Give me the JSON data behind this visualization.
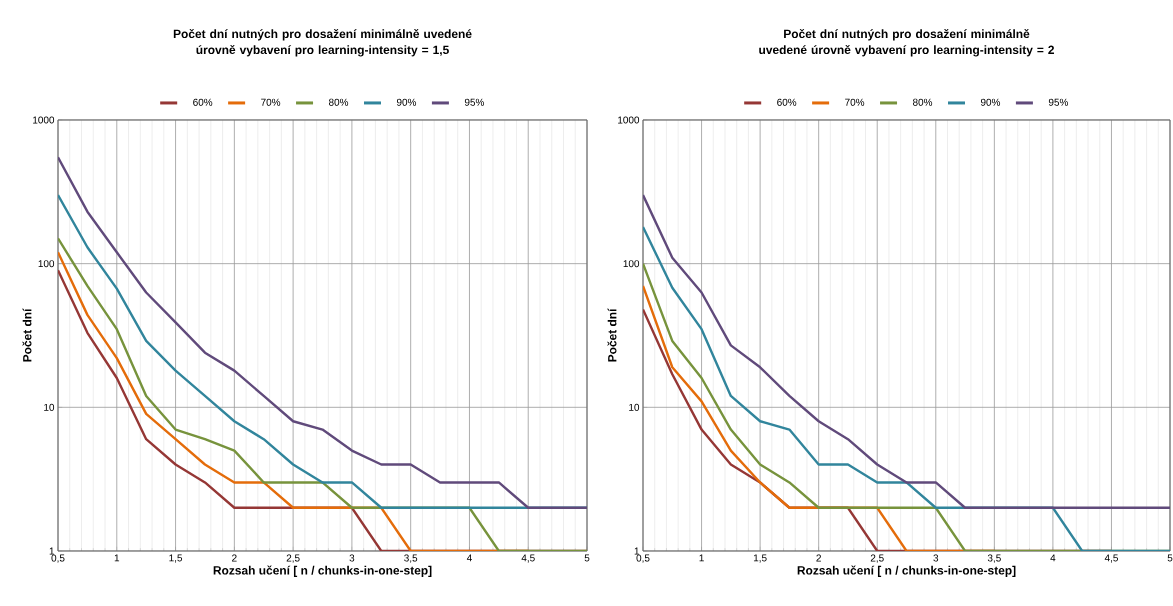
{
  "chart_data": [
    {
      "type": "line",
      "title": "Počet dní nutných pro dosažení minimálně uvedené úrovně vybavení pro learning-intensity = 1,5",
      "xlabel": "Rozsah učení [ n / chunks-in-one-step]",
      "ylabel": "Počet dní",
      "log": "y",
      "grid": true,
      "legend": "top",
      "line_style": "solid",
      "marker": "none",
      "x": [
        0.5,
        0.75,
        1,
        1.25,
        1.5,
        1.75,
        2,
        2.25,
        2.5,
        2.75,
        3,
        3.25,
        3.5,
        3.75,
        4,
        4.25,
        4.5,
        4.75,
        5
      ],
      "xlim": [
        0.5,
        5
      ],
      "ylim": [
        1,
        1000
      ],
      "xticks": [
        {
          "value": 0.5,
          "label": "0,5"
        },
        1,
        {
          "value": 1.5,
          "label": "1,5"
        },
        2,
        {
          "value": 2.5,
          "label": "2,5"
        },
        3,
        {
          "value": 3.5,
          "label": "3,5"
        },
        4,
        {
          "value": 4.5,
          "label": "4,5"
        },
        5
      ],
      "yticks": [
        1,
        10,
        100,
        1000
      ],
      "series": [
        {
          "name": "60%",
          "color": "#953735",
          "values": [
            90,
            33,
            16,
            6,
            4,
            3,
            2,
            2,
            2,
            2,
            2,
            1,
            1,
            1,
            1,
            1,
            1,
            1,
            1
          ]
        },
        {
          "name": "70%",
          "color": "#e46c0a",
          "values": [
            120,
            44,
            22,
            9,
            6,
            4,
            3,
            3,
            2,
            2,
            2,
            2,
            1,
            1,
            1,
            1,
            1,
            null,
            null
          ]
        },
        {
          "name": "80%",
          "color": "#77933c",
          "values": [
            150,
            70,
            35,
            12,
            7,
            6,
            5,
            3,
            3,
            3,
            2,
            2,
            2,
            2,
            2,
            1,
            1,
            1,
            1
          ]
        },
        {
          "name": "90%",
          "color": "#31859c",
          "values": [
            300,
            130,
            67,
            29,
            18,
            12,
            8,
            6,
            4,
            3,
            3,
            2,
            2,
            2,
            2,
            2,
            2,
            2,
            2
          ]
        },
        {
          "name": "95%",
          "color": "#604a7b",
          "values": [
            550,
            230,
            120,
            63,
            39,
            24,
            18,
            12,
            8,
            7,
            5,
            4,
            4,
            3,
            3,
            3,
            2,
            2,
            2
          ]
        }
      ]
    },
    {
      "type": "line",
      "title": "Počet dní nutných pro dosažení minimálně uvedené úrovně vybavení pro learning-intensity = 2",
      "xlabel": "Rozsah učení [ n / chunks-in-one-step]",
      "ylabel": "Počet dní",
      "log": "y",
      "grid": true,
      "legend": "top",
      "line_style": "solid",
      "marker": "none",
      "x": [
        0.5,
        0.75,
        1,
        1.25,
        1.5,
        1.75,
        2,
        2.25,
        2.5,
        2.75,
        3,
        3.25,
        3.5,
        3.75,
        4,
        4.25,
        4.5,
        4.75,
        5
      ],
      "xlim": [
        0.5,
        5
      ],
      "ylim": [
        1,
        1000
      ],
      "xticks": [
        {
          "value": 0.5,
          "label": "0,5"
        },
        1,
        {
          "value": 1.5,
          "label": "1,5"
        },
        2,
        {
          "value": 2.5,
          "label": "2,5"
        },
        3,
        {
          "value": 3.5,
          "label": "3,5"
        },
        4,
        {
          "value": 4.5,
          "label": "4,5"
        },
        5
      ],
      "yticks": [
        1,
        10,
        100,
        1000
      ],
      "series": [
        {
          "name": "60%",
          "color": "#953735",
          "values": [
            48,
            17,
            7,
            4,
            3,
            2,
            2,
            2,
            1,
            1,
            1,
            1,
            1,
            1,
            1,
            1,
            1,
            null,
            null
          ]
        },
        {
          "name": "70%",
          "color": "#e46c0a",
          "values": [
            70,
            19,
            11,
            5,
            3,
            2,
            2,
            2,
            2,
            1,
            1,
            1,
            1,
            null,
            null,
            null,
            null,
            null,
            null
          ]
        },
        {
          "name": "80%",
          "color": "#77933c",
          "values": [
            100,
            29,
            16,
            7,
            4,
            3,
            2,
            2,
            2,
            2,
            2,
            1,
            1,
            1,
            1,
            1,
            1,
            1,
            1
          ]
        },
        {
          "name": "90%",
          "color": "#31859c",
          "values": [
            180,
            68,
            35,
            12,
            8,
            7,
            4,
            4,
            3,
            3,
            2,
            2,
            2,
            2,
            2,
            1,
            1,
            1,
            1
          ]
        },
        {
          "name": "95%",
          "color": "#604a7b",
          "values": [
            300,
            110,
            63,
            27,
            19,
            12,
            8,
            6,
            4,
            3,
            3,
            2,
            2,
            2,
            2,
            2,
            2,
            2,
            2
          ]
        }
      ]
    }
  ]
}
